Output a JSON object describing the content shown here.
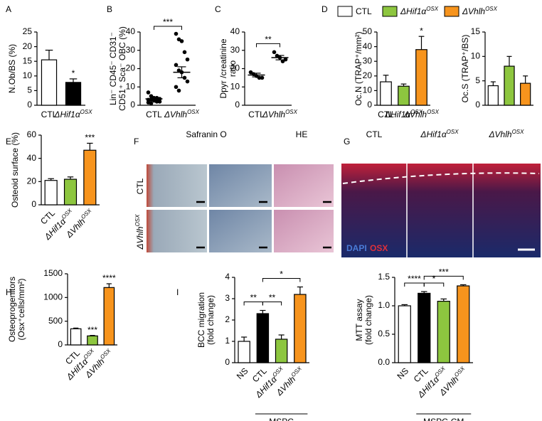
{
  "chart_data": [
    {
      "type": "bar",
      "panel": "A",
      "ylabel": [
        "N.Ob/BS (%)"
      ],
      "categories": [
        "CTL",
        {
          "main": "ΔHif1α",
          "sup": "OSX"
        }
      ],
      "values": [
        15.5,
        7.8
      ],
      "errors": [
        3.3,
        1.2
      ],
      "colors": [
        "#ffffff",
        "#000000"
      ],
      "ylim": [
        0,
        25
      ],
      "yticks": [
        0,
        5,
        10,
        15,
        20,
        25
      ],
      "value_annotations": [
        null,
        "*"
      ]
    },
    {
      "type": "dot",
      "panel": "B",
      "ylabel": [
        "Lin⁻ CD45⁻ CD31⁻",
        "CD51⁺ Sca⁻ OBC (%)"
      ],
      "categories": [
        "CTL",
        {
          "main": "ΔVhlh",
          "sup": "OSX"
        }
      ],
      "points": [
        [
          7,
          5,
          4,
          4,
          3.5,
          3,
          3,
          2.5,
          2,
          2,
          1.5,
          1
        ],
        [
          39,
          36,
          35,
          29,
          25,
          22,
          19,
          18,
          15,
          13,
          10,
          8
        ]
      ],
      "means": [
        3.5,
        18
      ],
      "sems": [
        0.6,
        3
      ],
      "ylim": [
        0,
        40
      ],
      "yticks": [
        0,
        10,
        20,
        30,
        40
      ],
      "brackets": [
        {
          "text": "***",
          "categories": [
            0,
            1
          ]
        }
      ]
    },
    {
      "type": "dot",
      "panel": "C",
      "ylabel": [
        "Dpyr /creatinine",
        "ratio"
      ],
      "categories": [
        "CTL",
        {
          "main": "ΔVhlh",
          "sup": "OSX"
        }
      ],
      "points": [
        [
          18,
          17,
          16,
          15,
          15
        ],
        [
          29,
          27,
          26,
          24,
          25
        ]
      ],
      "means": [
        16.5,
        26
      ],
      "sems": [
        1,
        1.2
      ],
      "ylim": [
        0,
        40
      ],
      "yticks": [
        0,
        10,
        20,
        30,
        40
      ],
      "brackets": [
        {
          "text": "**",
          "categories": [
            0,
            1
          ]
        }
      ]
    },
    {
      "type": "bar",
      "panel": "D",
      "ylabel": [
        "Oc.N (TRAP⁺/mm²)"
      ],
      "legend": true,
      "categories": [
        "CTL",
        {
          "main": "ΔHif1α",
          "sup": "OSX"
        },
        {
          "main": "ΔVhlh",
          "sup": "OSX"
        }
      ],
      "values": [
        16,
        13,
        38
      ],
      "errors": [
        4.5,
        1.5,
        9
      ],
      "colors": [
        "#ffffff",
        "#8dc63f",
        "#f7941d"
      ],
      "ylim": [
        0,
        50
      ],
      "yticks": [
        0,
        10,
        20,
        30,
        40,
        50
      ],
      "value_annotations": [
        null,
        null,
        "*"
      ]
    },
    {
      "type": "bar",
      "ylabel": [
        "Oc.S (TRAP⁺/BS)"
      ],
      "categories": [
        null,
        null,
        null
      ],
      "values": [
        4,
        8,
        4.5
      ],
      "errors": [
        0.8,
        2,
        1.5
      ],
      "colors": [
        "#ffffff",
        "#8dc63f",
        "#f7941d"
      ],
      "ylim": [
        0,
        15
      ],
      "yticks": [
        0,
        5,
        10,
        15
      ]
    },
    {
      "type": "bar",
      "panel": "E",
      "ylabel": [
        "Osteoid surface (%)"
      ],
      "categories": [
        "CTL",
        {
          "main": "ΔHif1α",
          "sup": "OSX"
        },
        {
          "main": "ΔVhlh",
          "sup": "OSX"
        }
      ],
      "values": [
        21,
        22,
        47
      ],
      "errors": [
        1.5,
        2,
        6
      ],
      "colors": [
        "#ffffff",
        "#8dc63f",
        "#f7941d"
      ],
      "ylim": [
        0,
        60
      ],
      "yticks": [
        0,
        20,
        40,
        60
      ],
      "value_annotations": [
        null,
        null,
        "***"
      ]
    },
    {
      "type": "bar",
      "panel": "H",
      "ylabel": [
        "Osteoprogenitors",
        "(Osx⁺cells/mm²)"
      ],
      "categories": [
        "CTL",
        {
          "main": "ΔHif1α",
          "sup": "OSX"
        },
        {
          "main": "ΔVhlh",
          "sup": "OSX"
        }
      ],
      "values": [
        340,
        190,
        1210
      ],
      "errors": [
        15,
        10,
        80
      ],
      "colors": [
        "#ffffff",
        "#8dc63f",
        "#f7941d"
      ],
      "ylim": [
        0,
        1500
      ],
      "yticks": [
        0,
        500,
        1000,
        1500
      ],
      "value_annotations": [
        null,
        "***",
        "****"
      ]
    },
    {
      "type": "bar",
      "panel": "I",
      "ylabel": [
        "BCC migration",
        "(fold change)"
      ],
      "categories": [
        "NS",
        "CTL",
        {
          "main": "ΔHif1α",
          "sup": "OSX"
        },
        {
          "main": "ΔVhlh",
          "sup": "OSX"
        }
      ],
      "values": [
        1.0,
        2.3,
        1.1,
        3.2
      ],
      "errors": [
        0.2,
        0.15,
        0.2,
        0.35
      ],
      "colors": [
        "#ffffff",
        "#000000",
        "#8dc63f",
        "#f7941d"
      ],
      "ylim": [
        0,
        4
      ],
      "yticks": [
        0,
        1,
        2,
        3,
        4
      ],
      "brackets": [
        {
          "text": "**",
          "categories": [
            0,
            1
          ]
        },
        {
          "text": "**",
          "categories": [
            1,
            2
          ]
        },
        {
          "text": "*",
          "categories": [
            1,
            3
          ]
        }
      ],
      "group": {
        "label": "MSPC",
        "categories": [
          1,
          3
        ]
      }
    },
    {
      "type": "bar",
      "ylabel": [
        "MTT assay",
        "(fold change)"
      ],
      "categories": [
        "NS",
        "CTL",
        {
          "main": "ΔHif1α",
          "sup": "OSX"
        },
        {
          "main": "ΔVhlh",
          "sup": "OSX"
        }
      ],
      "values": [
        1.0,
        1.22,
        1.08,
        1.35
      ],
      "errors": [
        0.02,
        0.03,
        0.04,
        0.02
      ],
      "colors": [
        "#ffffff",
        "#000000",
        "#8dc63f",
        "#f7941d"
      ],
      "ylim": [
        0,
        1.5
      ],
      "yticks": [
        {
          "value": 0,
          "label": "0.0"
        },
        {
          "value": 0.5,
          "label": "0.5"
        },
        {
          "value": 1,
          "label": "1.0"
        },
        {
          "value": 1.5,
          "label": "1.5"
        }
      ],
      "brackets": [
        {
          "text": "****",
          "categories": [
            0,
            1
          ]
        },
        {
          "text": "*",
          "categories": [
            1,
            2
          ]
        },
        {
          "text": "***",
          "categories": [
            1,
            3
          ]
        }
      ],
      "group": {
        "label": "MSPC-CM",
        "categories": [
          1,
          3
        ]
      }
    }
  ],
  "image_panels": [
    {
      "panel": "F",
      "columns": [
        "Safranin O",
        "HE"
      ],
      "rows": [
        "CTL",
        {
          "main": "ΔVhlh",
          "sup": "OSX"
        }
      ]
    },
    {
      "panel": "G",
      "columns": [
        "CTL",
        {
          "main": "ΔHif1α",
          "sup": "OSX"
        },
        {
          "main": "ΔVhlh",
          "sup": "OSX"
        }
      ],
      "stains": [
        "DAPI",
        "OSX"
      ]
    }
  ]
}
